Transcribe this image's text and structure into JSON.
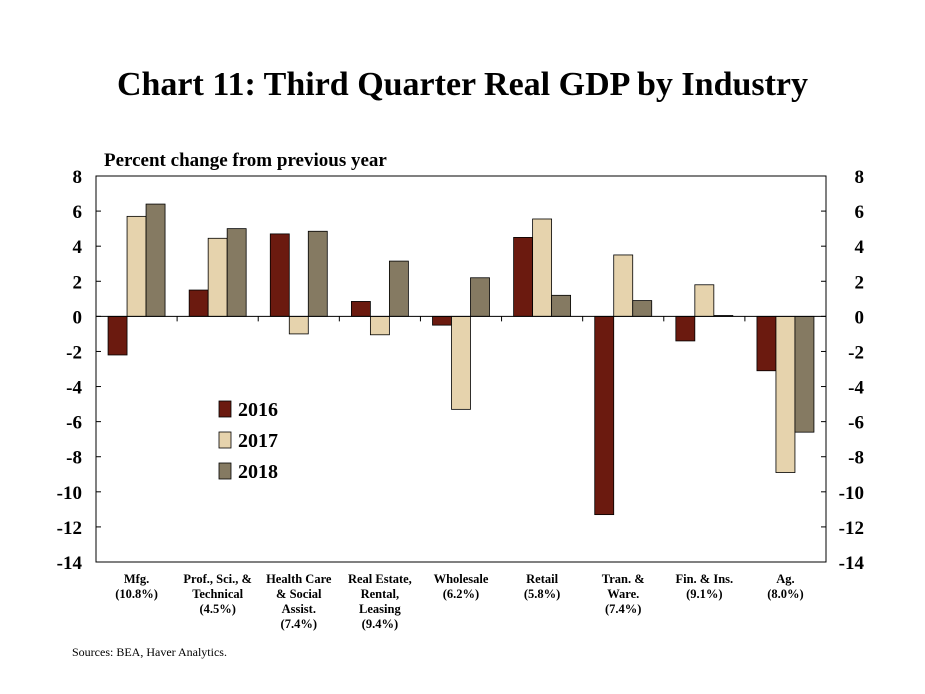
{
  "chart_data": {
    "type": "bar",
    "title": "Chart 11: Third Quarter Real GDP by Industry",
    "ylabel": "Percent change from previous year",
    "source": "Sources: BEA, Haver Analytics.",
    "ylim": [
      -14,
      8
    ],
    "yticks": [
      8,
      6,
      4,
      2,
      0,
      -2,
      -4,
      -6,
      -8,
      -10,
      -12,
      -14
    ],
    "secondary_axis": true,
    "grid": false,
    "legend_position": "lower-left",
    "categories": [
      [
        "Mfg.",
        "(10.8%)"
      ],
      [
        "Prof., Sci., &",
        "Technical",
        "(4.5%)"
      ],
      [
        "Health Care",
        "& Social",
        "Assist.",
        "(7.4%)"
      ],
      [
        "Real Estate,",
        "Rental,",
        "Leasing",
        "(9.4%)"
      ],
      [
        "Wholesale",
        "(6.2%)"
      ],
      [
        "Retail",
        "(5.8%)"
      ],
      [
        "Tran. &",
        "Ware.",
        "(7.4%)"
      ],
      [
        "Fin. & Ins.",
        "(9.1%)"
      ],
      [
        "Ag.",
        "(8.0%)"
      ]
    ],
    "series": [
      {
        "name": "2016",
        "color": "#6b1a0f",
        "values": [
          -2.2,
          1.5,
          4.7,
          0.85,
          -0.5,
          4.5,
          -11.3,
          -1.4,
          -3.1
        ]
      },
      {
        "name": "2017",
        "color": "#e6d3ad",
        "values": [
          5.7,
          4.45,
          -1.0,
          -1.05,
          -5.3,
          5.55,
          3.5,
          1.8,
          -8.9
        ]
      },
      {
        "name": "2018",
        "color": "#857a62",
        "values": [
          6.4,
          5.0,
          4.85,
          3.15,
          2.2,
          1.2,
          0.9,
          0.05,
          -6.6
        ]
      }
    ]
  }
}
